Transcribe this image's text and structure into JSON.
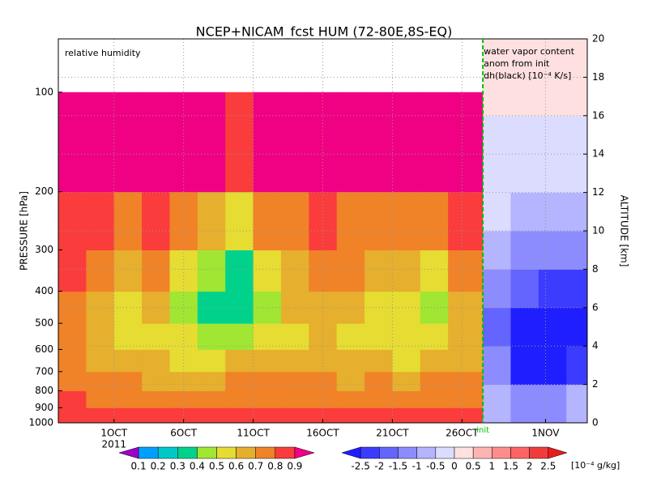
{
  "chart_data": {
    "type": "heatmap",
    "title": "NCEP+NICAM_fcst HUM (72-80E,8S-EQ)",
    "left_label": "relative humidity",
    "right_label": [
      "water vapor content",
      "anom from init",
      "dh(black) [10⁻⁴ K/s]"
    ],
    "y_label": "PRESSURE [hPa]",
    "y2_label": "ALTITUDE [km]",
    "xlim": [
      -3,
      35
    ],
    "xticks": [
      {
        "value": 1,
        "label": "1OCT"
      },
      {
        "value": 6,
        "label": "6OCT"
      },
      {
        "value": 11,
        "label": "11OCT"
      },
      {
        "value": 16,
        "label": "16OCT"
      },
      {
        "value": 21,
        "label": "21OCT"
      },
      {
        "value": 26,
        "label": "26OCT"
      },
      {
        "value": 32,
        "label": "1NOV"
      }
    ],
    "year": "2011",
    "init_label": "init",
    "init_x": 27.5,
    "ylim": [
      1000,
      69
    ],
    "yscale": "log",
    "yticks": [
      100,
      200,
      300,
      400,
      500,
      600,
      700,
      800,
      900,
      1000
    ],
    "y2lim": [
      0,
      20
    ],
    "y2ticks": [
      0,
      2,
      4,
      6,
      8,
      10,
      12,
      14,
      16,
      18,
      20
    ],
    "grid": true,
    "rh": {
      "time_bins": [
        -3,
        -1,
        1,
        3,
        5,
        7,
        9,
        11,
        13,
        15,
        17,
        19,
        21,
        23,
        25,
        27.5
      ],
      "pressure_bins": [
        1000,
        900,
        800,
        700,
        600,
        500,
        400,
        300,
        200,
        100
      ],
      "values": [
        [
          0.85,
          0.8,
          0.75,
          0.72,
          0.7,
          0.75,
          0.8,
          0.85,
          0.95
        ],
        [
          0.85,
          0.75,
          0.7,
          0.65,
          0.6,
          0.65,
          0.75,
          0.8,
          0.95
        ],
        [
          0.85,
          0.75,
          0.7,
          0.6,
          0.55,
          0.55,
          0.65,
          0.75,
          0.9
        ],
        [
          0.85,
          0.75,
          0.65,
          0.6,
          0.55,
          0.6,
          0.7,
          0.8,
          0.95
        ],
        [
          0.85,
          0.75,
          0.65,
          0.55,
          0.5,
          0.45,
          0.55,
          0.7,
          0.9
        ],
        [
          0.85,
          0.75,
          0.65,
          0.55,
          0.45,
          0.35,
          0.45,
          0.65,
          0.9
        ],
        [
          0.85,
          0.75,
          0.7,
          0.6,
          0.45,
          0.35,
          0.3,
          0.55,
          0.85
        ],
        [
          0.85,
          0.75,
          0.7,
          0.6,
          0.55,
          0.45,
          0.5,
          0.7,
          0.95
        ],
        [
          0.85,
          0.75,
          0.7,
          0.6,
          0.55,
          0.6,
          0.65,
          0.75,
          0.9
        ],
        [
          0.85,
          0.75,
          0.7,
          0.65,
          0.6,
          0.65,
          0.75,
          0.85,
          0.95
        ],
        [
          0.85,
          0.75,
          0.65,
          0.6,
          0.55,
          0.6,
          0.7,
          0.75,
          0.95
        ],
        [
          0.85,
          0.75,
          0.7,
          0.6,
          0.5,
          0.55,
          0.65,
          0.75,
          0.9
        ],
        [
          0.85,
          0.75,
          0.65,
          0.55,
          0.5,
          0.5,
          0.6,
          0.75,
          0.95
        ],
        [
          0.85,
          0.75,
          0.7,
          0.6,
          0.55,
          0.45,
          0.55,
          0.7,
          0.9
        ],
        [
          0.85,
          0.75,
          0.7,
          0.65,
          0.6,
          0.65,
          0.7,
          0.8,
          0.95
        ]
      ],
      "levels": [
        0.1,
        0.2,
        0.3,
        0.4,
        0.5,
        0.6,
        0.7,
        0.8,
        0.9
      ],
      "colors": [
        "#a000c8",
        "#00a0ff",
        "#00c8c8",
        "#00d28c",
        "#a0e632",
        "#e6dc32",
        "#e6af2d",
        "#f08228",
        "#fa3c3c",
        "#f00082"
      ]
    },
    "anom": {
      "time_bins": [
        27.5,
        29.5,
        31.5,
        33.5,
        35
      ],
      "altitude_bins": [
        0,
        2,
        4,
        6,
        8,
        10,
        12,
        14,
        16,
        18,
        20
      ],
      "values": [
        [
          -1,
          -1.5,
          -2,
          -1.5,
          -1,
          -0.5,
          -0.5,
          -0.2,
          0.2,
          0.2
        ],
        [
          -1.5,
          -2.7,
          -2.7,
          -2,
          -1.5,
          -1,
          -0.5,
          -0.2,
          0.2,
          0.2
        ],
        [
          -1.5,
          -2.7,
          -2.7,
          -2.2,
          -1.5,
          -1,
          -0.5,
          -0.2,
          0.2,
          0.2
        ],
        [
          -1,
          -2.2,
          -2.7,
          -2.2,
          -1.5,
          -1,
          -0.5,
          -0.2,
          0.2,
          0.2
        ]
      ],
      "levels": [
        -2.5,
        -2,
        -1.5,
        -1,
        -0.5,
        0,
        0.5,
        1,
        1.5,
        2,
        2.5
      ],
      "colors": [
        "#1e1eff",
        "#3c3cff",
        "#6464ff",
        "#8c8cff",
        "#b4b4ff",
        "#dcdcff",
        "#ffe0e0",
        "#ffb4b4",
        "#ff8c8c",
        "#ff6464",
        "#f03c3c",
        "#e61e1e"
      ],
      "unit": "[10⁻⁴ g/kg]"
    }
  }
}
